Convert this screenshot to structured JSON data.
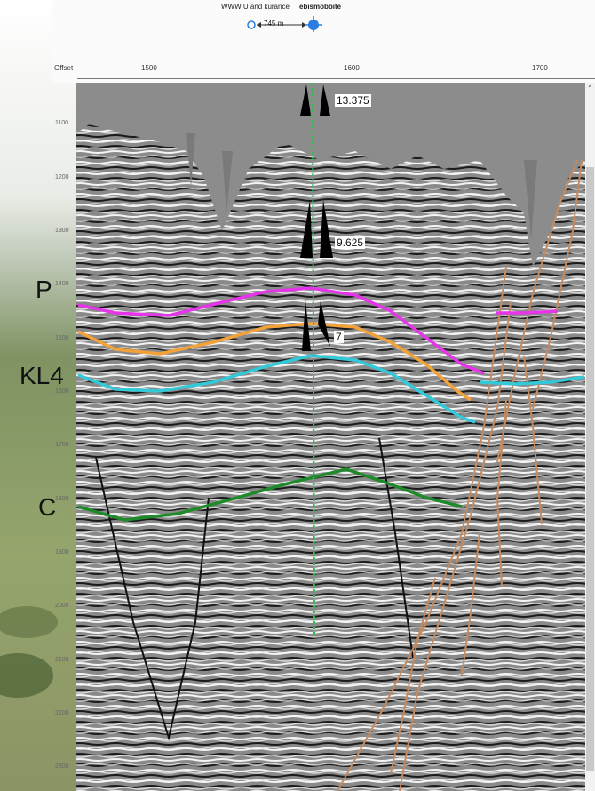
{
  "header": {
    "well_left": "WWW U and kurance",
    "well_right": "ebismobbite",
    "scale_text": "745 m"
  },
  "axis": {
    "offset_label": "Offset",
    "ticks": [
      "1500",
      "1600",
      "1700"
    ]
  },
  "depth_ticks": [
    "1100",
    "1200",
    "1300",
    "1400",
    "1500",
    "1600",
    "1700",
    "1800",
    "1900",
    "2000",
    "2100",
    "2200",
    "2300"
  ],
  "horizons": {
    "p": "P",
    "kl4": "KL4",
    "c": "C"
  },
  "casing": {
    "c1": "13.375",
    "c2": "9.625",
    "c3": "7"
  },
  "colors": {
    "horizon_p": "#e535e8",
    "horizon_orange": "#f3a23a",
    "horizon_kl4": "#34c9d8",
    "horizon_c": "#1f8a2a",
    "faults": "#c58a5e",
    "well_path": "#22c34a"
  }
}
